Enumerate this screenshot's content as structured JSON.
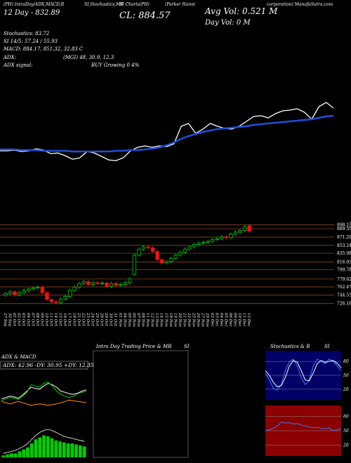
{
  "chart_data": [
    {
      "type": "line",
      "title": "CL: 884.57",
      "annotations": [
        "(PH) IntraDay/ADX,MACD,R",
        "SI,Stochastics,MR",
        "SI Charts(PH)",
        "(Parker Hanni",
        "corporation) ManafaSutra.com",
        "12 Day - 832.89",
        "Avg Vol: 0.521 M",
        "Day Vol: 0 M",
        "Stochastics: 83.72",
        "SI 14/5: 57.24 / 55.93",
        "MACD: 884.17, 851.32, 32.83 C",
        "ADX:",
        "(MGI) 48, 30.9, 12.3",
        "ADX signal:",
        "BUY Growing 0 4%"
      ],
      "ylim": [
        700,
        900
      ],
      "series": [
        {
          "color": "#ffffff",
          "values": [
            750,
            750,
            752,
            748,
            750,
            756,
            752,
            742,
            744,
            736,
            726,
            730,
            748,
            744,
            734,
            724,
            722,
            730,
            750,
            760,
            764,
            760,
            764,
            762,
            770,
            820,
            828,
            800,
            812,
            828,
            820,
            814,
            812,
            820,
            834,
            848,
            850,
            844,
            856,
            864,
            866,
            870,
            860,
            840,
            876,
            888,
            872
          ]
        },
        {
          "color": "#1f4fd8",
          "values": [
            754,
            754,
            754,
            752,
            752,
            752,
            750,
            750,
            750,
            750,
            748,
            748,
            748,
            748,
            748,
            748,
            750,
            750,
            752,
            752,
            754,
            756,
            760,
            766,
            774,
            784,
            792,
            798,
            804,
            808,
            812,
            814,
            816,
            818,
            820,
            824,
            826,
            828,
            830,
            832,
            834,
            836,
            838,
            840,
            844,
            848,
            850
          ]
        }
      ]
    },
    {
      "type": "candlestick",
      "categories": [
        "27 Sep",
        "30 Sep",
        "01 Oct",
        "02 Oct",
        "03 Oct",
        "04 Oct",
        "07 Oct",
        "08 Oct",
        "09 Oct",
        "10 Oct",
        "11 Oct",
        "14 Oct",
        "15 Oct",
        "16 Oct",
        "17 Oct",
        "18 Oct",
        "21 Oct",
        "22 Oct",
        "23 Oct",
        "24 Oct",
        "25 Oct",
        "28 Oct",
        "29 Oct",
        "30 Oct",
        "31 Oct",
        "01 Nov",
        "04 Nov",
        "05 Nov",
        "06 Nov",
        "07 Nov",
        "08 Nov",
        "11 Nov",
        "12 Nov",
        "13 Nov",
        "14 Nov",
        "15 Nov",
        "18 Nov",
        "19 Nov",
        "20 Nov",
        "21 Nov",
        "22 Nov",
        "25 Nov",
        "26 Nov",
        "27 Nov",
        "29 Nov",
        "02 Dec",
        "03 Dec",
        "04 Dec",
        "05 Dec",
        "06 Dec",
        "09 Dec",
        "10 Dec",
        "11 Dec",
        "12 Dec"
      ],
      "open": [
        744,
        748,
        752,
        745,
        750,
        755,
        758,
        760,
        762,
        750,
        735,
        730,
        728,
        736,
        742,
        755,
        762,
        770,
        774,
        768,
        772,
        770,
        771,
        764,
        770,
        766,
        768,
        772,
        790,
        832,
        845,
        850,
        848,
        840,
        822,
        815,
        818,
        825,
        832,
        838,
        845,
        850,
        855,
        858,
        860,
        862,
        866,
        868,
        872,
        870,
        878,
        882,
        886,
        896
      ],
      "high": [
        752,
        756,
        756,
        754,
        759,
        762,
        764,
        766,
        766,
        754,
        739,
        734,
        740,
        746,
        759,
        766,
        774,
        778,
        778,
        776,
        776,
        775,
        775,
        774,
        774,
        772,
        776,
        784,
        836,
        849,
        854,
        854,
        852,
        844,
        826,
        822,
        829,
        836,
        842,
        849,
        854,
        859,
        862,
        864,
        866,
        870,
        872,
        876,
        876,
        882,
        886,
        890,
        898,
        900
      ],
      "low": [
        740,
        744,
        741,
        741,
        746,
        751,
        754,
        756,
        746,
        731,
        726,
        724,
        724,
        732,
        738,
        751,
        758,
        766,
        764,
        764,
        766,
        766,
        760,
        760,
        762,
        762,
        764,
        768,
        786,
        828,
        841,
        844,
        836,
        818,
        811,
        811,
        814,
        821,
        828,
        834,
        841,
        846,
        851,
        854,
        856,
        858,
        862,
        864,
        866,
        866,
        874,
        878,
        882,
        880
      ],
      "close": [
        748,
        752,
        745,
        750,
        755,
        758,
        760,
        762,
        750,
        735,
        730,
        728,
        736,
        742,
        755,
        762,
        770,
        774,
        768,
        772,
        770,
        771,
        764,
        770,
        766,
        768,
        772,
        780,
        832,
        845,
        850,
        848,
        840,
        822,
        815,
        818,
        825,
        832,
        838,
        845,
        850,
        855,
        858,
        860,
        862,
        866,
        868,
        872,
        870,
        878,
        882,
        886,
        894,
        884
      ],
      "up_color": "#00cc00",
      "down_color": "#ee1111",
      "grid_color": "#a0522d",
      "ylim": [
        715,
        905
      ],
      "yticks": [
        898.15,
        889.55,
        871.29,
        853.24,
        835.98,
        816.93,
        799.78,
        779.62,
        762.47,
        744.53,
        726.16
      ]
    },
    {
      "type": "line",
      "title": "ADX  & MACD",
      "subtitle": "ADX: 42.96  -DY: 30.95  +DY: 12.35",
      "ylim": [
        0,
        60
      ],
      "series": [
        {
          "color": "#ffffff",
          "values": [
            18,
            20,
            22,
            21,
            19,
            24,
            30,
            36,
            34,
            33,
            38,
            42,
            40,
            36,
            30,
            28,
            26,
            25,
            27,
            30,
            32
          ]
        },
        {
          "color": "#00cc00",
          "values": [
            15,
            18,
            20,
            19,
            17,
            22,
            28,
            40,
            38,
            36,
            42,
            44,
            38,
            30,
            25,
            22,
            20,
            22,
            26,
            28,
            30
          ]
        },
        {
          "color": "#ff8c00",
          "values": [
            14,
            12,
            10,
            12,
            14,
            12,
            10,
            8,
            9,
            10,
            9,
            8,
            9,
            10,
            12,
            14,
            16,
            15,
            14,
            13,
            12
          ]
        }
      ]
    },
    {
      "type": "bar",
      "ylim": [
        0,
        40
      ],
      "color": "#00cc00",
      "values": [
        2,
        3,
        4,
        4,
        6,
        8,
        10,
        14,
        18,
        20,
        22,
        21,
        19,
        17,
        16,
        15,
        14,
        14,
        13,
        12,
        11
      ],
      "line": {
        "color": "#ffffff",
        "values": [
          4,
          5,
          6,
          7,
          9,
          11,
          14,
          18,
          22,
          25,
          27,
          28,
          27,
          25,
          23,
          21,
          20,
          19,
          18,
          17,
          16
        ]
      }
    },
    {
      "type": "line",
      "title": "Intra Day Trading Price  & MR",
      "title2": "SI",
      "series": []
    },
    {
      "type": "line",
      "title": "Stochastics  & R",
      "title2": "SI",
      "background": "#000066",
      "ylim": [
        0,
        100
      ],
      "yticks": [
        20,
        50,
        80
      ],
      "series": [
        {
          "color": "#3a7bff",
          "values": [
            55,
            40,
            22,
            18,
            30,
            60,
            80,
            85,
            70,
            45,
            30,
            40,
            70,
            85,
            80,
            75,
            85,
            80,
            70,
            60
          ]
        },
        {
          "color": "#ffffff",
          "values": [
            60,
            50,
            35,
            25,
            28,
            45,
            70,
            82,
            78,
            60,
            40,
            38,
            55,
            75,
            82,
            78,
            80,
            82,
            76,
            66
          ]
        }
      ]
    },
    {
      "type": "line",
      "background": "#8b0000",
      "ylim": [
        0,
        100
      ],
      "yticks": [
        20,
        50,
        80
      ],
      "series": [
        {
          "color": "#3a7bff",
          "values": [
            50,
            52,
            55,
            60,
            68,
            66,
            67,
            64,
            65,
            62,
            60,
            58,
            56,
            57,
            55,
            54,
            56,
            50,
            52,
            55
          ]
        }
      ]
    }
  ]
}
